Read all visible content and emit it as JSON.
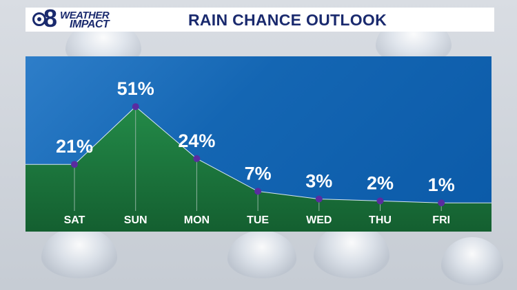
{
  "header": {
    "logo_weather": "WEATHER",
    "logo_impact": "IMPACT",
    "title": "RAIN CHANCE OUTLOOK"
  },
  "colors": {
    "sky": "#0b5aa8",
    "area_fill": "#1b7a3e",
    "dot": "#5a2ca0",
    "text": "#ffffff",
    "title": "#1a2a6e"
  },
  "chart_data": {
    "type": "area",
    "categories": [
      "SAT",
      "SUN",
      "MON",
      "TUE",
      "WED",
      "THU",
      "FRI"
    ],
    "values": [
      21,
      51,
      24,
      7,
      3,
      2,
      1
    ],
    "value_labels": [
      "21%",
      "51%",
      "24%",
      "7%",
      "3%",
      "2%",
      "1%"
    ],
    "ylim": [
      0,
      100
    ],
    "grid": false,
    "legend": "none"
  }
}
